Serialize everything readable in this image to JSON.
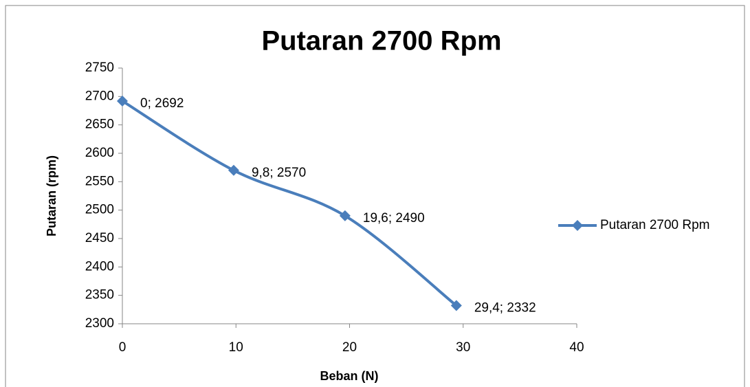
{
  "chart_data": {
    "type": "line",
    "title": "Putaran 2700 Rpm",
    "xlabel": "Beban (N)",
    "ylabel": "Putaran (rpm)",
    "x": [
      0,
      9.8,
      19.6,
      29.4
    ],
    "series": [
      {
        "name": "Putaran 2700 Rpm",
        "color": "#4a7ebb",
        "values": [
          2692,
          2570,
          2490,
          2332
        ],
        "value_labels": [
          "0; 2692",
          "9,8; 2570",
          "19,6; 2490",
          "29,4; 2332"
        ]
      }
    ],
    "xlim": [
      0,
      40
    ],
    "xticks": [
      0,
      10,
      20,
      30,
      40
    ],
    "ylim": [
      2300,
      2750
    ],
    "yticks": [
      2300,
      2350,
      2400,
      2450,
      2500,
      2550,
      2600,
      2650,
      2700,
      2750
    ],
    "grid": false,
    "legend": "right",
    "smooth": true
  }
}
